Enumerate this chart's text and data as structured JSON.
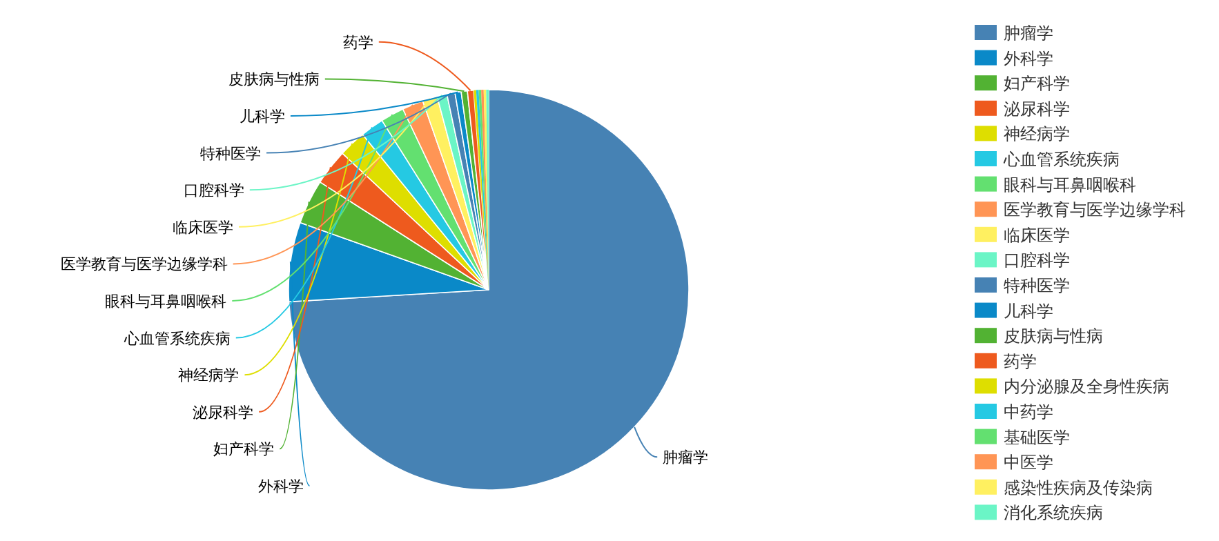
{
  "chart_data": {
    "type": "pie",
    "categories": [
      "肿瘤学",
      "外科学",
      "妇产科学",
      "泌尿科学",
      "神经病学",
      "心血管系统疾病",
      "眼科与耳鼻咽喉科",
      "医学教育与医学边缘学科",
      "临床医学",
      "口腔科学",
      "特种医学",
      "儿科学",
      "皮肤病与性病",
      "药学",
      "内分泌腺及全身性疾病",
      "中药学",
      "基础医学",
      "中医学",
      "感染性疾病及传染病",
      "消化系统疾病"
    ],
    "values": [
      74.05,
      6.4,
      3.6,
      2.9,
      2.2,
      1.9,
      1.9,
      1.7,
      1.2,
      0.8,
      0.65,
      0.5,
      0.5,
      0.5,
      0.2,
      0.2,
      0.2,
      0.2,
      0.2,
      0.2
    ],
    "colors": [
      "#4682b4",
      "#0a89c8",
      "#52b233",
      "#ee5a1e",
      "#dede00",
      "#25c9e3",
      "#63e070",
      "#ff9555",
      "#fff060",
      "#6bf5c6",
      "#4682b4",
      "#0a89c8",
      "#52b233",
      "#ee5a1e",
      "#dede00",
      "#25c9e3",
      "#63e070",
      "#ff9555",
      "#fff060",
      "#6bf5c6"
    ],
    "legend": "right"
  }
}
